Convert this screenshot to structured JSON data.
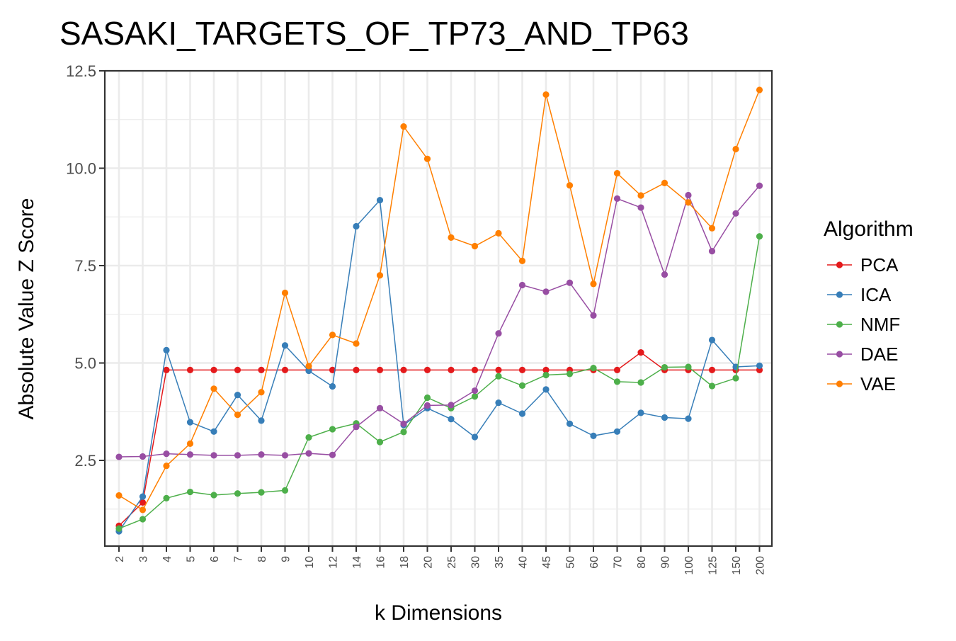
{
  "chart_data": {
    "type": "line",
    "title": "SASAKI_TARGETS_OF_TP73_AND_TP63",
    "xlabel": "k Dimensions",
    "ylabel": "Absolute Value Z Score",
    "categories": [
      "2",
      "3",
      "4",
      "5",
      "6",
      "7",
      "8",
      "9",
      "10",
      "12",
      "14",
      "16",
      "18",
      "20",
      "25",
      "30",
      "35",
      "40",
      "45",
      "50",
      "60",
      "70",
      "80",
      "90",
      "100",
      "125",
      "150",
      "200"
    ],
    "ylim": [
      0.3,
      12.5
    ],
    "yticks": [
      2.5,
      5.0,
      7.5,
      10.0,
      12.5
    ],
    "ytick_labels": [
      "2.5",
      "5.0",
      "7.5",
      "10.0",
      "12.5"
    ],
    "grid": true,
    "legend": {
      "title": "Algorithm",
      "position": "right"
    },
    "series": [
      {
        "name": "PCA",
        "color": "#e41a1c",
        "values": [
          0.82,
          1.42,
          4.82,
          4.82,
          4.82,
          4.82,
          4.82,
          4.82,
          4.82,
          4.82,
          4.82,
          4.82,
          4.82,
          4.82,
          4.82,
          4.82,
          4.82,
          4.82,
          4.82,
          4.82,
          4.82,
          4.82,
          5.27,
          4.82,
          4.82,
          4.82,
          4.82,
          4.82
        ]
      },
      {
        "name": "ICA",
        "color": "#377eb8",
        "values": [
          0.68,
          1.57,
          5.33,
          3.48,
          3.24,
          4.18,
          3.52,
          5.45,
          4.8,
          4.4,
          8.51,
          9.18,
          3.41,
          3.84,
          3.56,
          3.1,
          3.98,
          3.7,
          4.32,
          3.44,
          3.13,
          3.24,
          3.72,
          3.6,
          3.57,
          5.59,
          4.9,
          4.93
        ]
      },
      {
        "name": "NMF",
        "color": "#4daf4a",
        "values": [
          0.75,
          0.99,
          1.53,
          1.69,
          1.61,
          1.65,
          1.68,
          1.73,
          3.09,
          3.3,
          3.45,
          2.97,
          3.23,
          4.11,
          3.84,
          4.14,
          4.66,
          4.42,
          4.69,
          4.72,
          4.87,
          4.52,
          4.5,
          4.89,
          4.9,
          4.41,
          4.61,
          8.25
        ]
      },
      {
        "name": "DAE",
        "color": "#984ea3",
        "values": [
          2.59,
          2.6,
          2.67,
          2.65,
          2.63,
          2.63,
          2.65,
          2.63,
          2.68,
          2.64,
          3.36,
          3.84,
          3.44,
          3.91,
          3.92,
          4.29,
          5.76,
          7.0,
          6.83,
          7.06,
          6.22,
          9.22,
          8.99,
          7.27,
          9.31,
          7.87,
          8.84,
          9.55
        ]
      },
      {
        "name": "VAE",
        "color": "#ff7f00",
        "values": [
          1.6,
          1.23,
          2.36,
          2.93,
          4.34,
          3.67,
          4.25,
          6.8,
          4.92,
          5.72,
          5.5,
          7.25,
          11.07,
          10.24,
          8.22,
          8.0,
          8.33,
          7.62,
          11.89,
          9.56,
          7.03,
          9.87,
          9.3,
          9.62,
          9.12,
          8.46,
          10.49,
          12.01
        ]
      }
    ]
  }
}
